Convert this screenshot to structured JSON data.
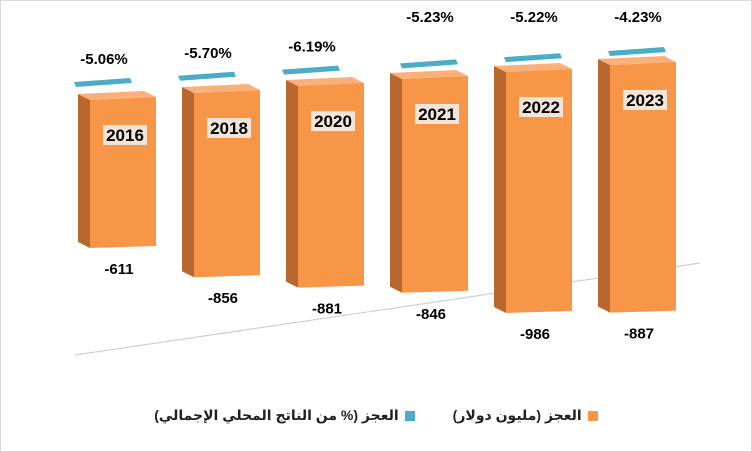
{
  "chart_data": {
    "type": "bar",
    "categories": [
      "2016",
      "2018",
      "2020",
      "2021",
      "2022",
      "2023"
    ],
    "series": [
      {
        "name": "العجز (مليون دولار)",
        "values": [
          -611,
          -856,
          -881,
          -846,
          -986,
          -887
        ],
        "labels": [
          "-611",
          "-856",
          "-881",
          "-846",
          "-986",
          "-887"
        ],
        "color": "#f79646"
      },
      {
        "name": "العجز (% من الناتج المحلي الإجمالي)",
        "values": [
          -5.06,
          -5.7,
          -6.19,
          -5.23,
          -5.22,
          -4.23
        ],
        "labels": [
          "-5.06%",
          "-5.70%",
          "-6.19%",
          "-5.23%",
          "-5.22%",
          "-4.23%"
        ],
        "color": "#4bacc6"
      }
    ],
    "legend_position": "bottom",
    "grid": false,
    "style": "3d-column"
  },
  "legend": {
    "deficit_usd": "العجز (مليون دولار)",
    "deficit_gdp": "العجز (% من الناتج المحلي الإجمالي)"
  }
}
